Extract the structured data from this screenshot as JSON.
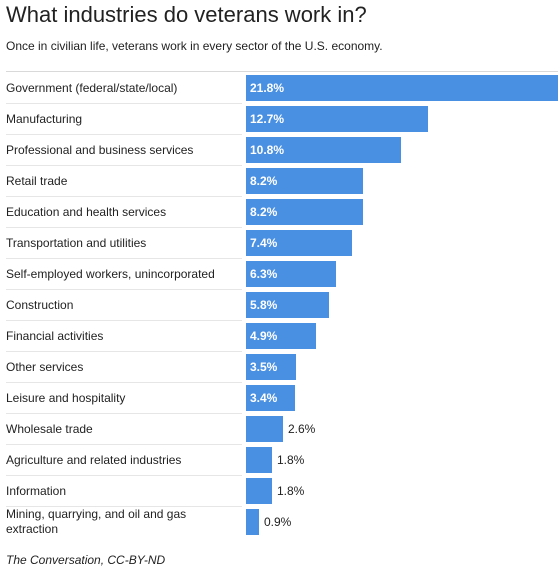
{
  "title": "What industries do veterans work in?",
  "subtitle": "Once in civilian life, veterans work in every sector of the U.S. economy.",
  "source": "The Conversation, CC-BY-ND",
  "colors": {
    "bar": "#4a90e2",
    "label_inside": "#ffffff",
    "label_outside": "#222222"
  },
  "chart_data": {
    "type": "bar",
    "orientation": "horizontal",
    "unit": "%",
    "categories": [
      "Government (federal/state/local)",
      "Manufacturing",
      "Professional and business services",
      "Retail trade",
      "Education and health services",
      "Transportation and utilities",
      "Self-employed workers, unincorporated",
      "Construction",
      "Financial activities",
      "Other services",
      "Leisure and hospitality",
      "Wholesale trade",
      "Agriculture and related industries",
      "Information",
      "Mining, quarrying, and oil and gas extraction"
    ],
    "values": [
      21.8,
      12.7,
      10.8,
      8.2,
      8.2,
      7.4,
      6.3,
      5.8,
      4.9,
      3.5,
      3.4,
      2.6,
      1.8,
      1.8,
      0.9
    ],
    "value_labels": [
      "21.8%",
      "12.7%",
      "10.8%",
      "8.2%",
      "8.2%",
      "7.4%",
      "6.3%",
      "5.8%",
      "4.9%",
      "3.5%",
      "3.4%",
      "2.6%",
      "1.8%",
      "1.8%",
      "0.9%"
    ],
    "xlim": [
      0,
      21.8
    ],
    "grid": false,
    "legend": "none"
  }
}
